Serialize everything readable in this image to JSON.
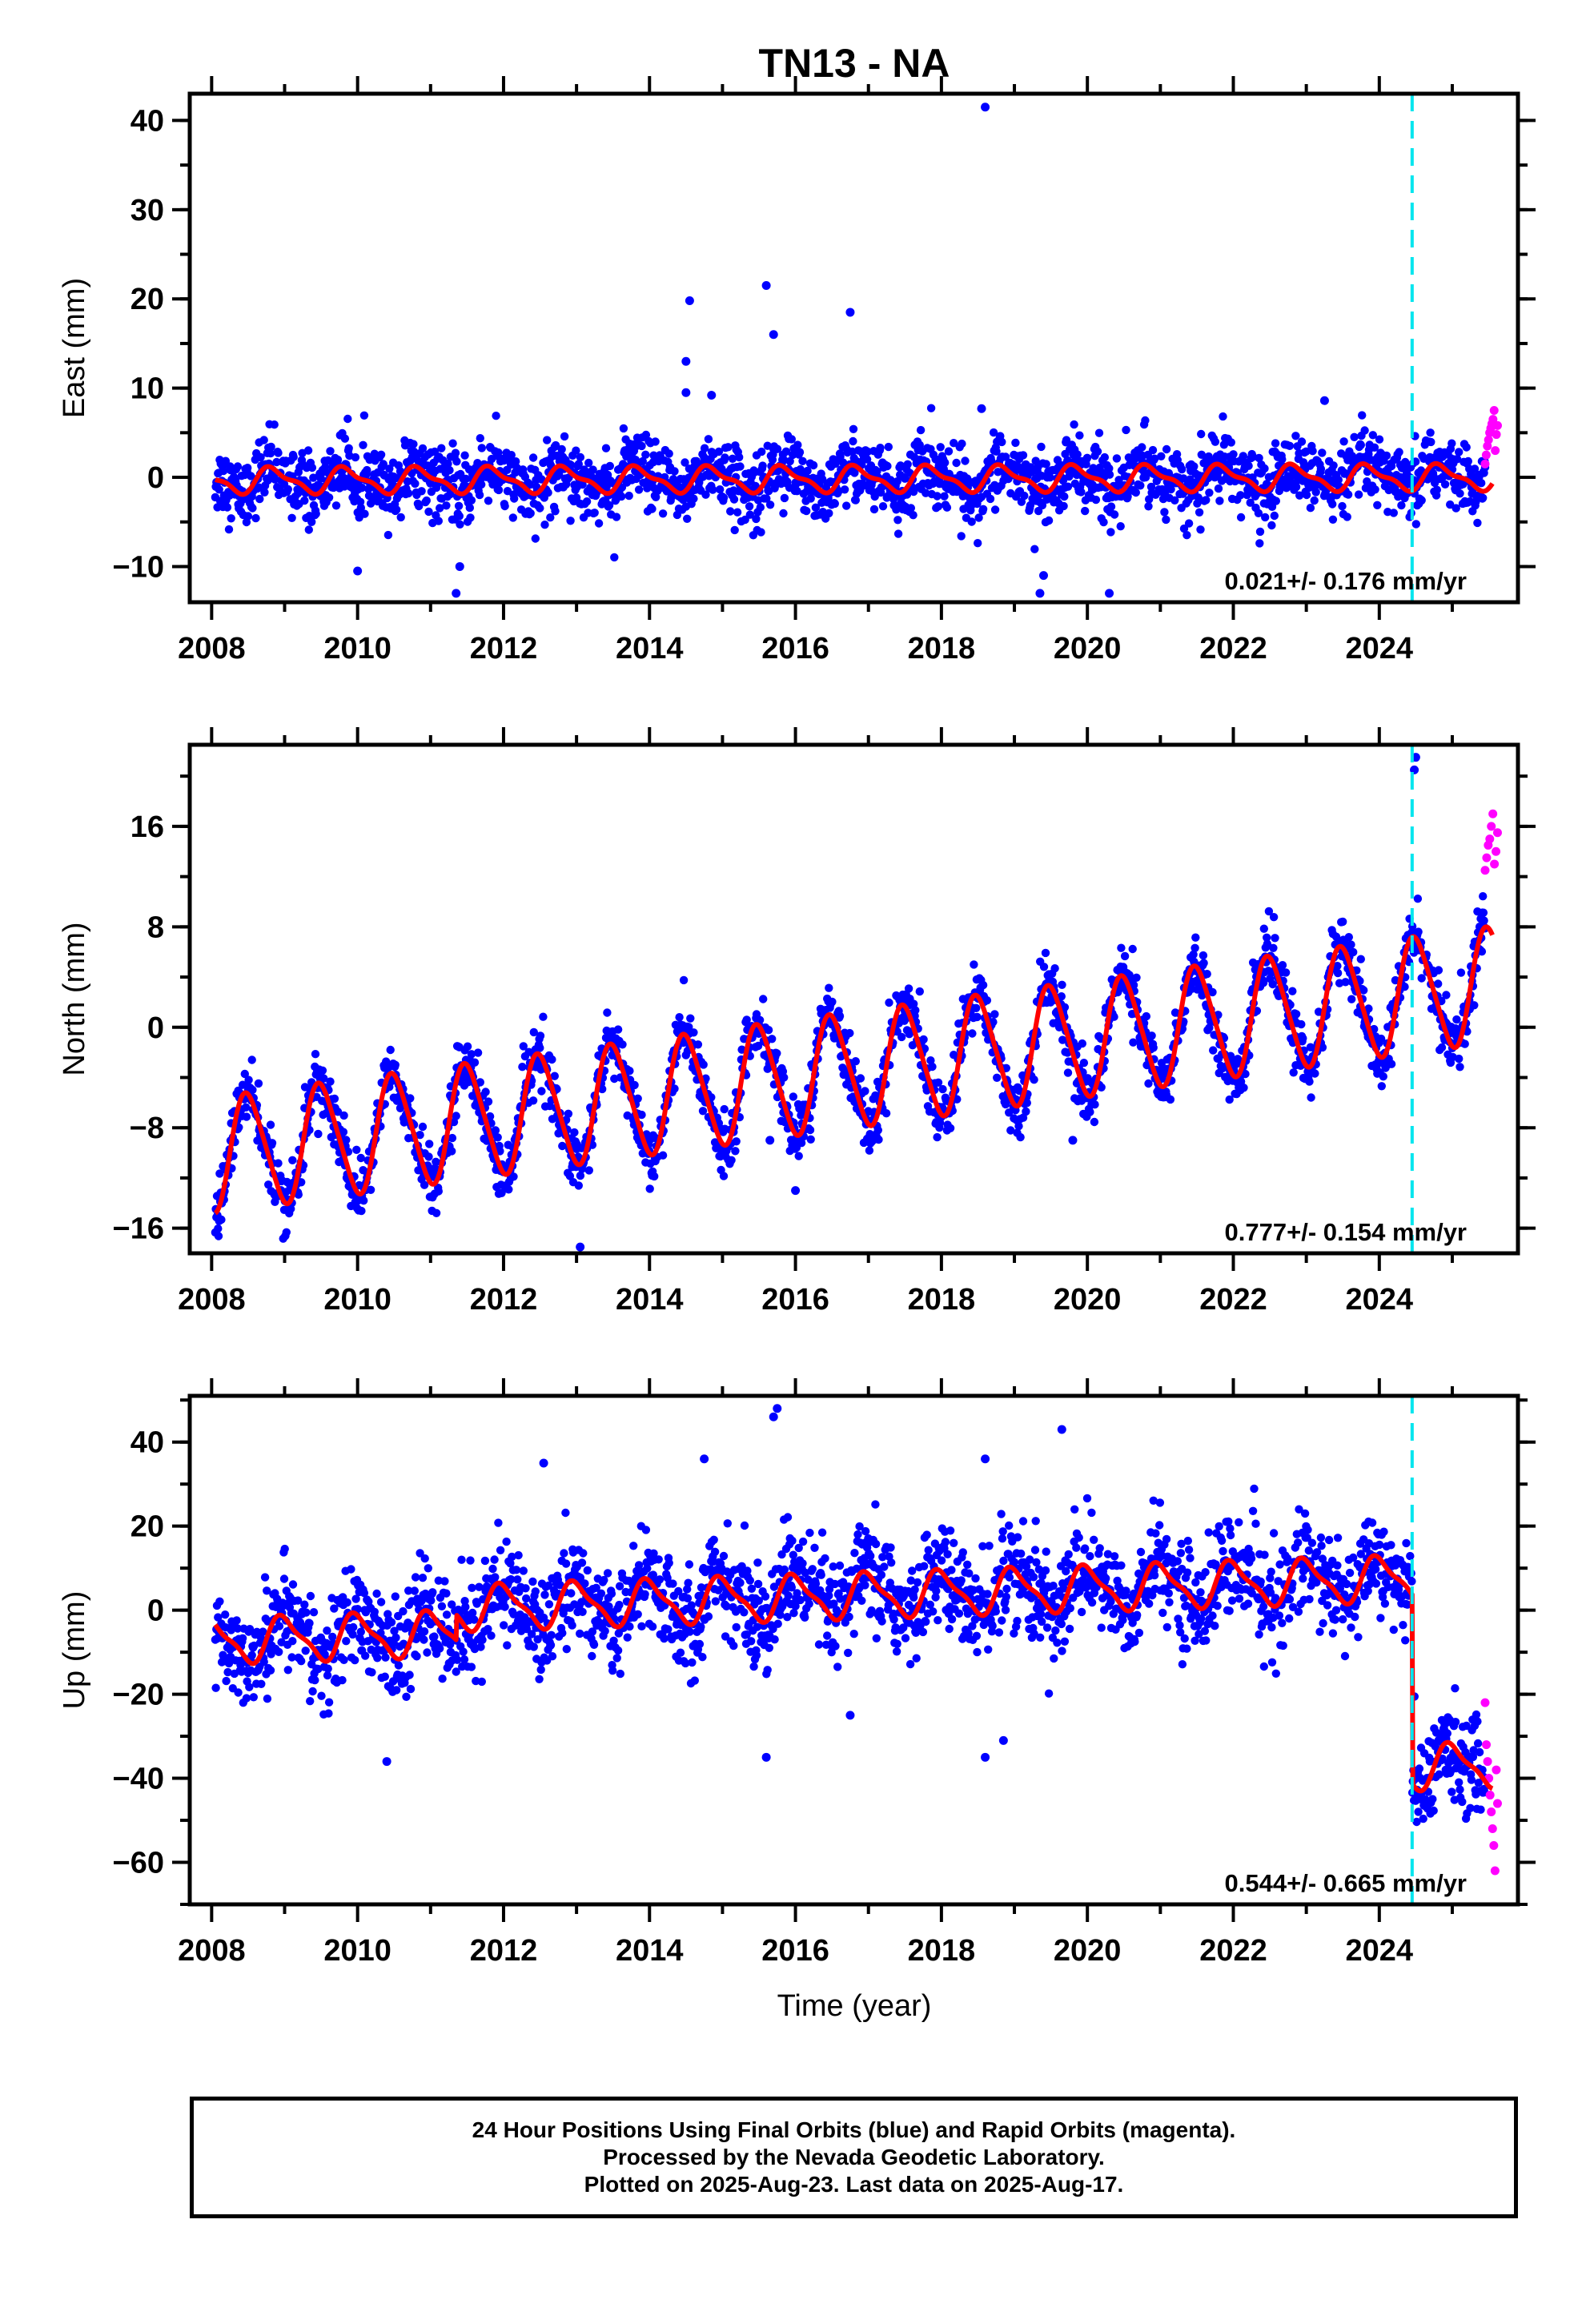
{
  "title": "TN13 - NA",
  "xlabel": "Time (year)",
  "colors": {
    "final": "#0000ff",
    "rapid": "#ff00ff",
    "model": "#ff0000",
    "event": "#00e5ee"
  },
  "footer": {
    "line1": "24 Hour Positions Using Final Orbits (blue) and Rapid Orbits (magenta).",
    "line2": "Processed by the Nevada Geodetic Laboratory.",
    "line3": "Plotted on 2025-Aug-23. Last data on 2025-Aug-17."
  },
  "chart_data": [
    {
      "type": "scatter",
      "component": "east",
      "ylabel": "East (mm)",
      "xlim": [
        2007.7,
        2025.9
      ],
      "ylim": [
        -14,
        43
      ],
      "xticks": [
        2008,
        2010,
        2012,
        2014,
        2016,
        2018,
        2020,
        2022,
        2024
      ],
      "yticks": [
        -10,
        0,
        10,
        20,
        30,
        40
      ],
      "ytick_labels": [
        "−10",
        "0",
        "10",
        "20",
        "30",
        "40"
      ],
      "rate_text": "0.021+/- 0.176 mm/yr",
      "event_lines": [
        2024.45
      ],
      "model": {
        "offset": -0.2,
        "rate": 0.021,
        "annual_amp": 1.3,
        "annual_phase": 0.6,
        "semi_amp": 0.5,
        "steps": []
      },
      "scatter_sd": 1.9,
      "outliers": [
        [
          2018.6,
          41.5
        ],
        [
          2014.55,
          19.8
        ],
        [
          2015.6,
          21.5
        ],
        [
          2015.7,
          16
        ],
        [
          2016.75,
          18.5
        ],
        [
          2014.5,
          13
        ],
        [
          2014.5,
          9.5
        ],
        [
          2014.85,
          9.2
        ],
        [
          2023.25,
          8.6
        ],
        [
          2018.55,
          7.7
        ],
        [
          2010.0,
          -10.5
        ],
        [
          2011.35,
          -13
        ],
        [
          2011.4,
          -10
        ],
        [
          2019.35,
          -13
        ],
        [
          2020.3,
          -13
        ],
        [
          2019.4,
          -11
        ]
      ],
      "rapid_range": [
        2025.45,
        2025.62
      ],
      "rapid_values": [
        1.5,
        2.5,
        3.5,
        4.2,
        5.0,
        5.5,
        6.0,
        6.5,
        7.5,
        3.0,
        4.8,
        5.8
      ]
    },
    {
      "type": "scatter",
      "component": "north",
      "ylabel": "North (mm)",
      "xlim": [
        2007.7,
        2025.9
      ],
      "ylim": [
        -18,
        22.5
      ],
      "xticks": [
        2008,
        2010,
        2012,
        2014,
        2016,
        2018,
        2020,
        2022,
        2024
      ],
      "yticks": [
        -16,
        -8,
        0,
        8,
        16
      ],
      "ytick_labels": [
        "−16",
        "−8",
        "0",
        "8",
        "16"
      ],
      "rate_text": "0.777+/- 0.154 mm/yr",
      "event_lines": [
        2024.45
      ],
      "model": {
        "offset": -4.0,
        "rate": 0.777,
        "annual_amp": 4.5,
        "annual_phase": 0.25,
        "semi_amp": 0.6,
        "steps": []
      },
      "scatter_sd": 1.2,
      "outliers": [
        [
          2013.05,
          -17.5
        ],
        [
          2016.0,
          -13
        ],
        [
          2015.65,
          -9
        ],
        [
          2019.8,
          -9
        ],
        [
          2024.5,
          21.5
        ],
        [
          2024.48,
          20.5
        ]
      ],
      "rapid_range": [
        2025.45,
        2025.62
      ],
      "rapid_values": [
        12.5,
        13.5,
        14.5,
        15.0,
        16.0,
        17.0,
        13.0,
        14.0,
        15.5
      ]
    },
    {
      "type": "scatter",
      "component": "up",
      "ylabel": "Up (mm)",
      "xlim": [
        2007.7,
        2025.9
      ],
      "ylim": [
        -70,
        51
      ],
      "xticks": [
        2008,
        2010,
        2012,
        2014,
        2016,
        2018,
        2020,
        2022,
        2024
      ],
      "yticks": [
        -60,
        -40,
        -20,
        0,
        20,
        40
      ],
      "ytick_labels": [
        "−60",
        "−40",
        "−20",
        "0",
        "20",
        "40"
      ],
      "rate_text": "0.544+/- 0.665 mm/yr",
      "event_lines": [
        2024.45
      ],
      "model": {
        "offset": -3.0,
        "rate": 0.544,
        "annual_amp": 5.0,
        "annual_phase": 0.75,
        "semi_amp": 1.5,
        "steps": [
          [
            2011.35,
            6.0
          ],
          [
            2024.45,
            -45.0
          ]
        ]
      },
      "scatter_sd": 6.0,
      "outliers": [
        [
          2015.75,
          48
        ],
        [
          2015.7,
          46
        ],
        [
          2019.65,
          43
        ],
        [
          2018.6,
          36
        ],
        [
          2014.75,
          36
        ],
        [
          2012.55,
          35
        ],
        [
          2015.6,
          -35
        ],
        [
          2018.6,
          -35
        ],
        [
          2018.85,
          -31
        ],
        [
          2010.4,
          -36
        ],
        [
          2016.75,
          -25
        ]
      ],
      "rapid_range": [
        2025.45,
        2025.62
      ],
      "rapid_values": [
        -22,
        -32,
        -36,
        -40,
        -44,
        -48,
        -52,
        -56,
        -62,
        -38,
        -46
      ]
    }
  ]
}
